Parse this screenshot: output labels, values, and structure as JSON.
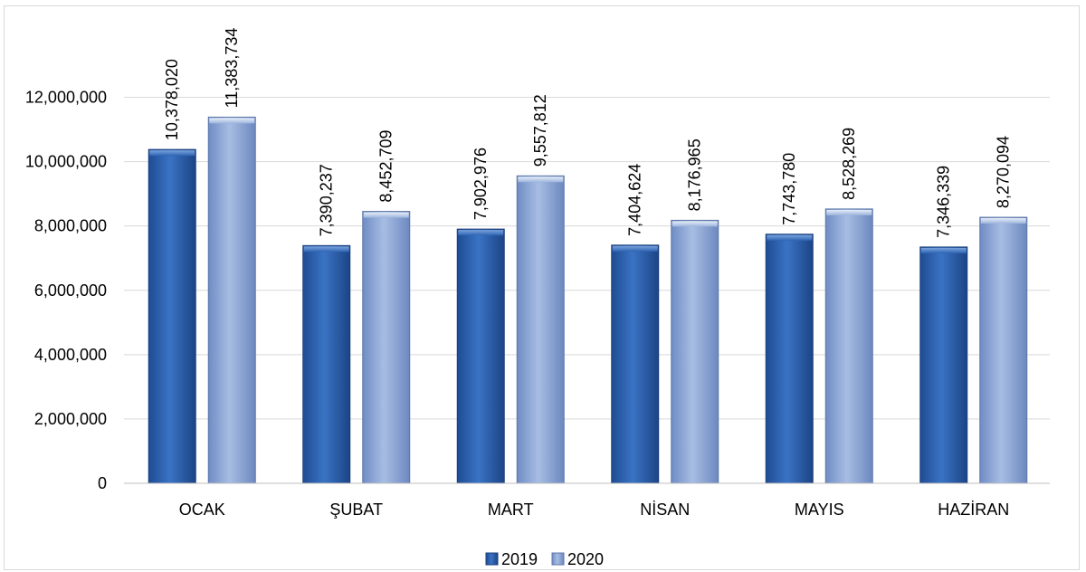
{
  "chart_data": {
    "type": "bar",
    "categories": [
      "OCAK",
      "ŞUBAT",
      "MART",
      "NİSAN",
      "MAYIS",
      "HAZİRAN"
    ],
    "series": [
      {
        "name": "2019",
        "values": [
          10378020,
          7390237,
          7902976,
          7404624,
          7743780,
          7346339
        ],
        "labels": [
          "10,378,020",
          "7,390,237",
          "7,902,976",
          "7,404,624",
          "7,743,780",
          "7,346,339"
        ]
      },
      {
        "name": "2020",
        "values": [
          11383734,
          8452709,
          9557812,
          8176965,
          8528269,
          8270094
        ],
        "labels": [
          "11,383,734",
          "8,452,709",
          "9,557,812",
          "8,176,965",
          "8,528,269",
          "8,270,094"
        ]
      }
    ],
    "ylim": [
      0,
      14000000
    ],
    "yticks": [
      0,
      2000000,
      4000000,
      6000000,
      8000000,
      10000000,
      12000000
    ],
    "ytick_labels": [
      "0",
      "2,000,000",
      "4,000,000",
      "6,000,000",
      "8,000,000",
      "10,000,000",
      "12,000,000"
    ],
    "grid": true,
    "legend_position": "bottom",
    "colors": {
      "2019": "#2e63b2",
      "2020": "#8fa8d6",
      "grid": "#d9d9d9"
    }
  }
}
